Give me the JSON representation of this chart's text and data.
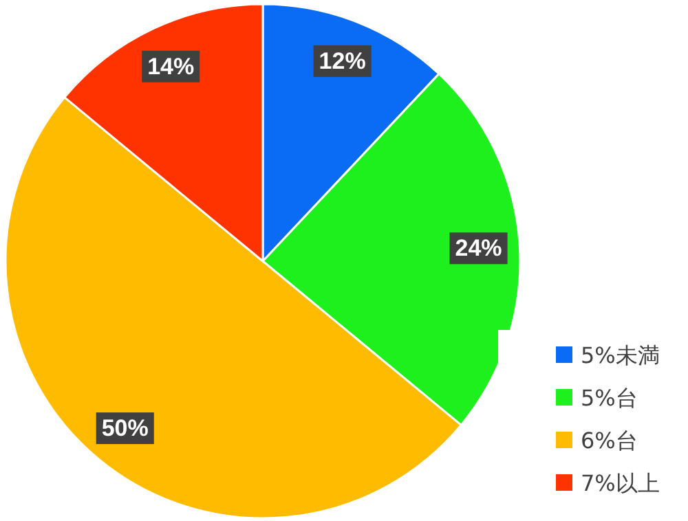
{
  "chart_data": {
    "type": "pie",
    "categories": [
      "5%未満",
      "5%台",
      "6%台",
      "7%以上"
    ],
    "values": [
      12,
      24,
      50,
      14
    ],
    "colors": [
      "#0a6cf5",
      "#1ef01e",
      "#ffbb00",
      "#ff3300"
    ],
    "value_labels": [
      "12%",
      "24%",
      "50%",
      "14%"
    ],
    "legend": "bottom right"
  }
}
